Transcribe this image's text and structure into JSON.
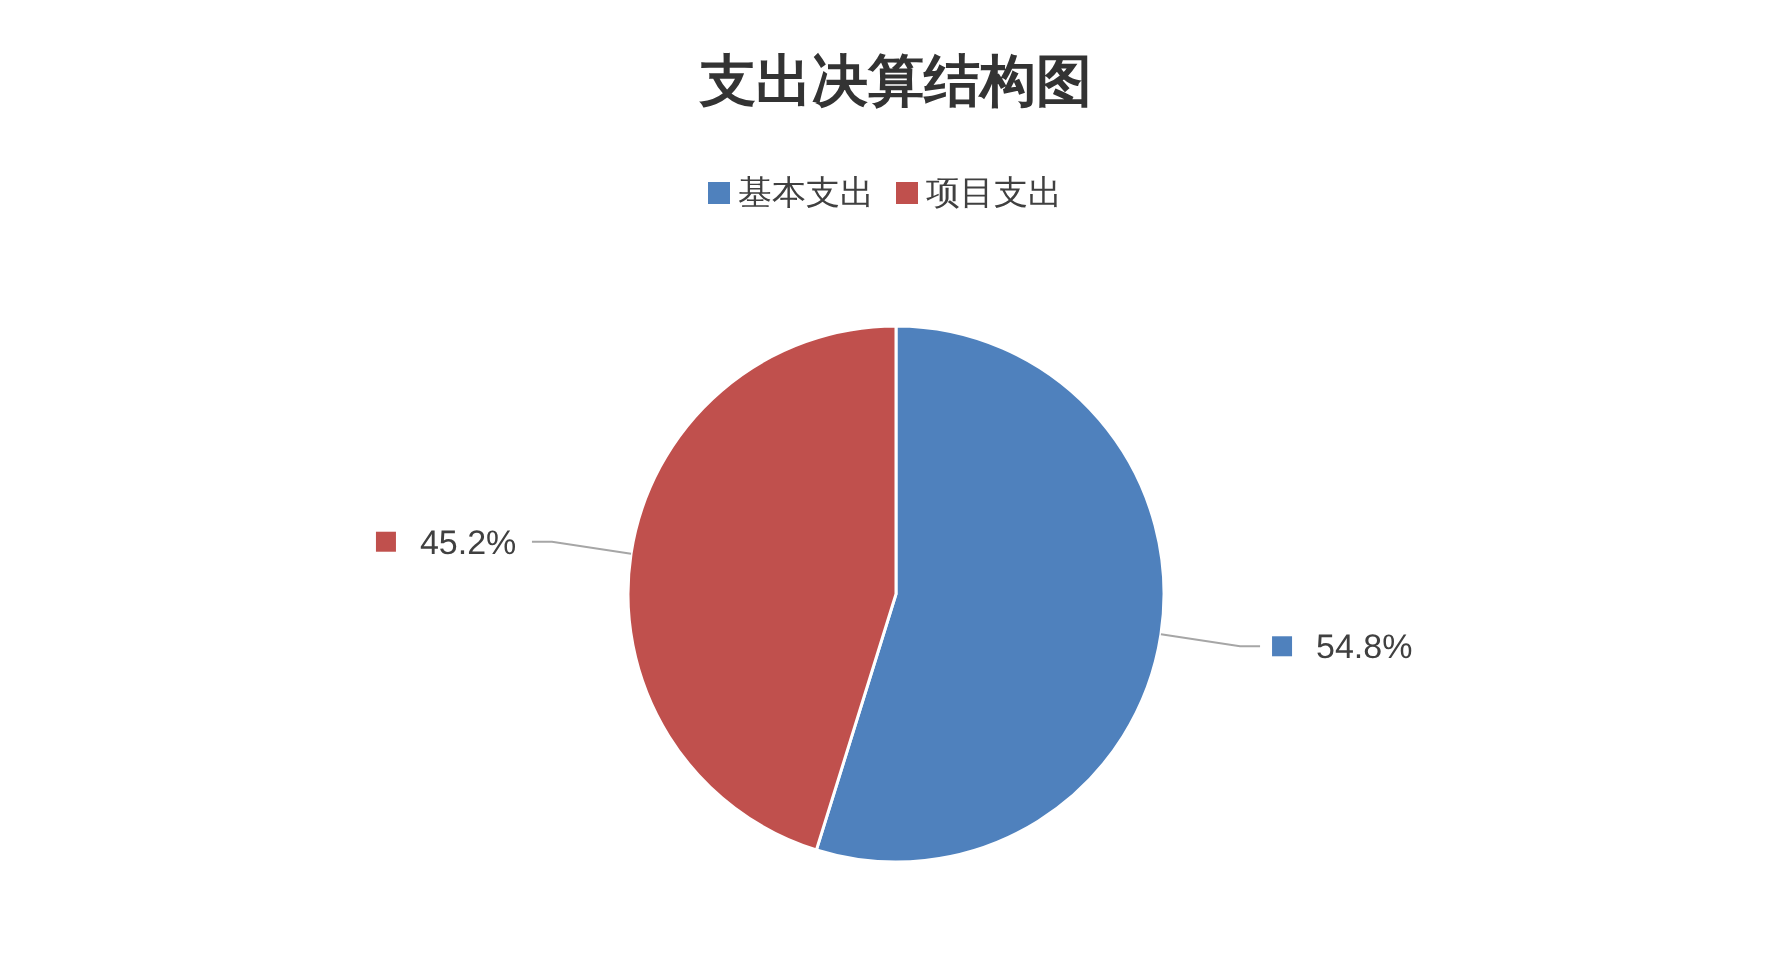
{
  "chart_data": {
    "type": "pie",
    "title": "支出决算结构图",
    "categories": [
      "基本支出",
      "项目支出"
    ],
    "values": [
      54.8,
      45.2
    ],
    "colors": [
      "#4f81bd",
      "#c0504d"
    ],
    "value_labels": [
      "54.8%",
      "45.2%"
    ],
    "legend": "top"
  }
}
